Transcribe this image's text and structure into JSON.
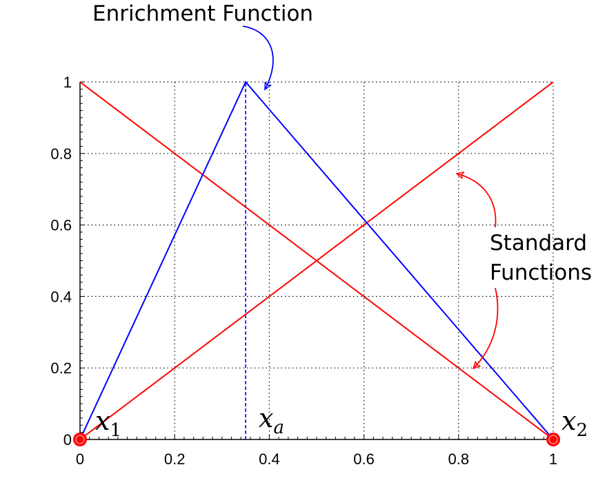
{
  "chart_data": {
    "type": "line",
    "title": "",
    "xlabel": "",
    "ylabel": "",
    "xlim": [
      0,
      1
    ],
    "ylim": [
      0,
      1
    ],
    "grid": true,
    "x_ticks": [
      "0",
      "0.2",
      "0.4",
      "0.6",
      "0.8",
      "1"
    ],
    "y_ticks": [
      "0",
      "0.2",
      "0.4",
      "0.6",
      "0.8",
      "1"
    ],
    "series": [
      {
        "color": "#ff0000",
        "points": [
          [
            0,
            1
          ],
          [
            1,
            0
          ]
        ]
      },
      {
        "color": "#ff0000",
        "points": [
          [
            0,
            0
          ],
          [
            1,
            1
          ]
        ]
      },
      {
        "color": "#0000ff",
        "points": [
          [
            0,
            0
          ],
          [
            0.35,
            1
          ],
          [
            1,
            0
          ]
        ]
      }
    ],
    "reference_lines": [
      {
        "color": "#0000ff",
        "style": "dashed",
        "x": 0.35,
        "y_range": [
          0,
          1
        ]
      }
    ],
    "nodes": [
      {
        "x": 0,
        "y": 0,
        "color": "#ff0000"
      },
      {
        "x": 1,
        "y": 0,
        "color": "#ff0000"
      }
    ],
    "annotations": {
      "enrichment": "Enrichment Function",
      "standard_line1": "Standard",
      "standard_line2": "Functions"
    },
    "point_labels": {
      "x1": {
        "main": "x",
        "sub": "1"
      },
      "xa": {
        "main": "x",
        "sub": "a"
      },
      "x2": {
        "main": "x",
        "sub": "2"
      }
    },
    "colors": {
      "enrichment": "#0000ff",
      "standard": "#ff0000"
    }
  }
}
